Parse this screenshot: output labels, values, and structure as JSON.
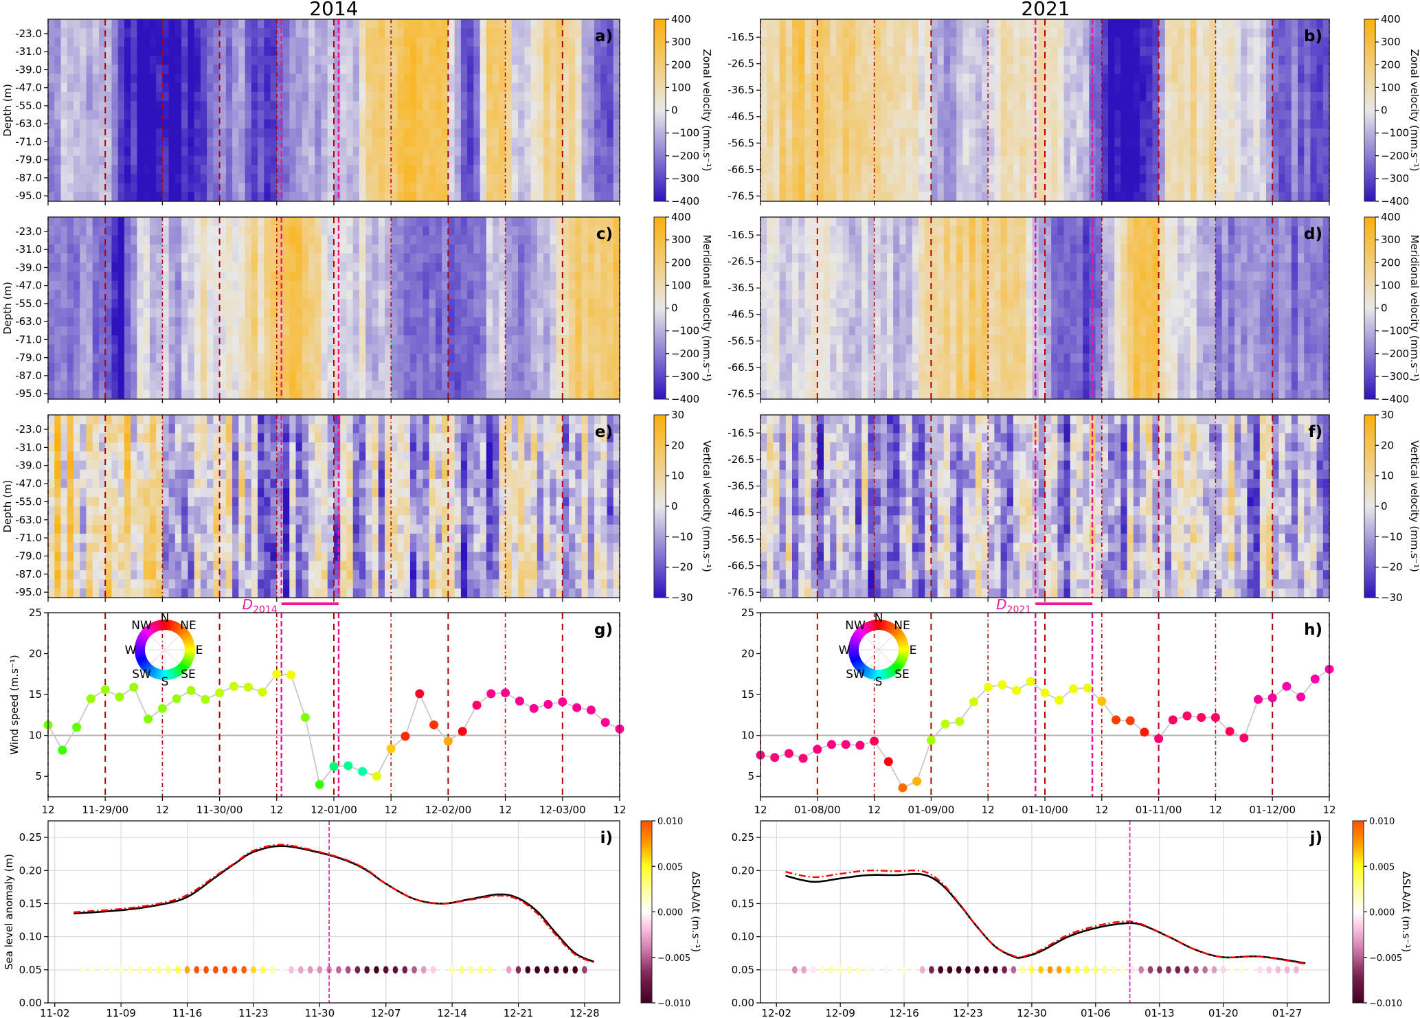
{
  "titles": {
    "left": "2014",
    "right": "2021"
  },
  "colors": {
    "velocity_low": "#2d12be",
    "velocity_mid": "#e8e8e8",
    "velocity_high": "#fcb00a",
    "day_line": "#b00000",
    "event": "#f0149c",
    "sla_line": "#000000",
    "sla_line_alt": "#ff0000",
    "wind_line": "#c8c8c8",
    "reference_line": "#b0b0b0"
  },
  "events": {
    "2014": {
      "label": "D",
      "subscript": "2014",
      "start": "11-30 13:00",
      "end": "12-01 01:00"
    },
    "2021": {
      "label": "D",
      "subscript": "2021",
      "start": "01-09 22:00",
      "end": "01-10 10:00"
    }
  },
  "chart_data": [
    {
      "panel_label": "a)",
      "type": "heatmap",
      "ylabel": "Depth (m)",
      "time_range": [
        "11-28 12:00",
        "12-03 12:00"
      ],
      "ylim": [
        -97.4,
        -16.6
      ],
      "yticks": [
        "-23.0",
        "-31.0",
        "-39.0",
        "-47.0",
        "-55.0",
        "-63.0",
        "-71.0",
        "-79.0",
        "-87.0",
        "-95.0"
      ],
      "value_range": [
        -400,
        400
      ],
      "colorbar": {
        "label": "Zonal velocity (mm.s⁻¹)",
        "ticks": [
          "400",
          "300",
          "200",
          "100",
          "0",
          "−100",
          "−200",
          "−300",
          "−400"
        ]
      },
      "column_profile": [
        -120,
        -110,
        -130,
        -100,
        -60,
        -300,
        -400,
        -400,
        -400,
        -380,
        -330,
        -230,
        -200,
        -180,
        -260,
        -370,
        -200,
        -150,
        -130,
        -110,
        -60,
        -20,
        150,
        220,
        240,
        260,
        280,
        320,
        -200,
        -300,
        220,
        180,
        -40,
        -30,
        160,
        170,
        80,
        -180,
        -220,
        -180
      ]
    },
    {
      "panel_label": "b)",
      "type": "heatmap",
      "ylabel": "",
      "time_range": [
        "01-07 12:00",
        "01-12 12:00"
      ],
      "ylim": [
        -78.5,
        -9.7
      ],
      "yticks": [
        "-16.5",
        "-26.5",
        "-36.5",
        "-46.5",
        "-56.5",
        "-66.5",
        "-76.5"
      ],
      "value_range": [
        -400,
        400
      ],
      "colorbar": {
        "label": "Zonal velocity (mm.s⁻¹)",
        "ticks": [
          "400",
          "300",
          "200",
          "100",
          "0",
          "−100",
          "−200",
          "−300",
          "−400"
        ]
      },
      "column_profile": [
        150,
        180,
        200,
        200,
        170,
        160,
        150,
        150,
        130,
        100,
        60,
        40,
        -130,
        -150,
        -120,
        -100,
        40,
        80,
        100,
        90,
        20,
        -20,
        -60,
        -200,
        -400,
        -400,
        -380,
        -250,
        100,
        120,
        110,
        60,
        20,
        10,
        -20,
        -180,
        -200,
        -220,
        -240,
        -250
      ]
    },
    {
      "panel_label": "c)",
      "type": "heatmap",
      "ylabel": "Depth (m)",
      "time_range": [
        "11-28 12:00",
        "12-03 12:00"
      ],
      "ylim": [
        -97.4,
        -16.6
      ],
      "yticks": [
        "-23.0",
        "-31.0",
        "-39.0",
        "-47.0",
        "-55.0",
        "-63.0",
        "-71.0",
        "-79.0",
        "-87.0",
        "-95.0"
      ],
      "value_range": [
        -400,
        400
      ],
      "colorbar": {
        "label": "Meridional velocity (mm.s⁻¹)",
        "ticks": [
          "400",
          "300",
          "200",
          "100",
          "0",
          "−100",
          "−200",
          "−300",
          "−400"
        ]
      },
      "column_profile": [
        -150,
        -180,
        -170,
        -200,
        -250,
        -400,
        -80,
        -40,
        -50,
        -160,
        20,
        60,
        40,
        80,
        120,
        150,
        280,
        320,
        120,
        60,
        -10,
        -20,
        -40,
        -30,
        -180,
        -240,
        -220,
        -260,
        -200,
        -300,
        -50,
        -20,
        -160,
        -150,
        -130,
        60,
        200,
        230,
        240,
        200
      ]
    },
    {
      "panel_label": "d)",
      "type": "heatmap",
      "ylabel": "",
      "time_range": [
        "01-07 12:00",
        "01-12 12:00"
      ],
      "ylim": [
        -78.5,
        -9.7
      ],
      "yticks": [
        "-16.5",
        "-26.5",
        "-36.5",
        "-46.5",
        "-56.5",
        "-66.5",
        "-76.5"
      ],
      "value_range": [
        -400,
        400
      ],
      "colorbar": {
        "label": "Meridional velocity (mm.s⁻¹)",
        "ticks": [
          "400",
          "300",
          "200",
          "100",
          "0",
          "−100",
          "−200",
          "−300",
          "−400"
        ]
      },
      "column_profile": [
        -40,
        -30,
        -50,
        -20,
        -40,
        -10,
        -30,
        -40,
        -20,
        -60,
        -100,
        60,
        120,
        160,
        180,
        200,
        180,
        150,
        120,
        -100,
        -220,
        -200,
        -230,
        -260,
        -50,
        200,
        250,
        220,
        60,
        -50,
        -80,
        -160,
        -180,
        -170,
        -200,
        -190,
        -220,
        -210,
        -180,
        -170
      ]
    },
    {
      "panel_label": "e)",
      "type": "heatmap",
      "ylabel": "Depth (m)",
      "time_range": [
        "11-28 12:00",
        "12-03 12:00"
      ],
      "ylim": [
        -97.4,
        -16.6
      ],
      "yticks": [
        "-23.0",
        "-31.0",
        "-39.0",
        "-47.0",
        "-55.0",
        "-63.0",
        "-71.0",
        "-79.0",
        "-87.0",
        "-95.0"
      ],
      "value_range": [
        -30,
        30
      ],
      "colorbar": {
        "label": "Vertical velocity (mm.s⁻¹)",
        "ticks": [
          "30",
          "20",
          "10",
          "0",
          "−10",
          "−20",
          "−30"
        ]
      },
      "column_profile": [
        10,
        12,
        8,
        10,
        6,
        5,
        8,
        4,
        2,
        0,
        -2,
        3,
        5,
        -5,
        -8,
        -10,
        -12,
        -10,
        -6,
        -4,
        -2,
        -8,
        -6,
        -4,
        -6,
        -10,
        -5,
        -3,
        -8,
        -6,
        -10,
        -4,
        -2,
        -5,
        -8,
        -6,
        -4,
        -3,
        -6,
        -5
      ]
    },
    {
      "panel_label": "f)",
      "type": "heatmap",
      "ylabel": "",
      "time_range": [
        "01-07 12:00",
        "01-12 12:00"
      ],
      "ylim": [
        -78.5,
        -9.7
      ],
      "yticks": [
        "-16.5",
        "-26.5",
        "-36.5",
        "-46.5",
        "-56.5",
        "-66.5",
        "-76.5"
      ],
      "value_range": [
        -30,
        30
      ],
      "colorbar": {
        "label": "Vertical velocity (mm.s⁻¹)",
        "ticks": [
          "30",
          "20",
          "10",
          "0",
          "−10",
          "−20",
          "−30"
        ]
      },
      "column_profile": [
        -8,
        -10,
        -6,
        -4,
        -8,
        -10,
        -6,
        -5,
        -7,
        -9,
        -5,
        -4,
        -6,
        -8,
        -10,
        -6,
        -4,
        -7,
        -9,
        -5,
        -6,
        -8,
        -5,
        -3,
        -6,
        -9,
        -10,
        -5,
        -4,
        -7,
        -8,
        -6,
        -3,
        -5,
        -9,
        -8,
        -6,
        -4,
        -7,
        -8
      ]
    },
    {
      "panel_label": "g)",
      "type": "scatter-line",
      "ylabel": "Wind speed (m.s⁻¹)",
      "time_range": [
        "11-28 12:00",
        "12-03 12:00"
      ],
      "ylim": [
        2.5,
        25
      ],
      "yticks": [
        "5",
        "10",
        "15",
        "20",
        "25"
      ],
      "reference_line": 10,
      "xticks": [
        "12",
        "11-29/00",
        "12",
        "11-30/00",
        "12",
        "12-01/00",
        "12",
        "12-02/00",
        "12",
        "12-03/00",
        "12"
      ],
      "x_start": "11-28 12:00",
      "step_hours": 3,
      "speed": [
        11.3,
        8.2,
        11.0,
        14.5,
        15.6,
        14.7,
        15.9,
        12.0,
        13.3,
        14.5,
        15.5,
        14.4,
        15.2,
        16.0,
        15.9,
        15.3,
        17.5,
        17.4,
        12.2,
        4.0,
        6.2,
        6.3,
        5.6,
        5.0,
        8.4,
        9.9,
        15.1,
        11.3,
        9.3,
        10.5,
        13.7,
        15.1,
        15.2,
        14.2,
        13.3,
        13.8,
        14.1,
        13.4,
        13.1,
        11.6,
        10.8
      ],
      "direction_deg": [
        115,
        125,
        118,
        108,
        108,
        108,
        108,
        112,
        110,
        108,
        106,
        105,
        102,
        100,
        100,
        98,
        92,
        92,
        112,
        125,
        155,
        160,
        165,
        95,
        72,
        15,
        352,
        18,
        60,
        356,
        340,
        336,
        335,
        335,
        334,
        334,
        334,
        334,
        334,
        334,
        334
      ],
      "compass_labels": [
        "N",
        "NE",
        "E",
        "SE",
        "S",
        "SW",
        "W",
        "NW"
      ]
    },
    {
      "panel_label": "h)",
      "type": "scatter-line",
      "ylabel": "",
      "time_range": [
        "01-07 12:00",
        "01-12 12:00"
      ],
      "ylim": [
        2.5,
        25
      ],
      "yticks": [
        "5",
        "10",
        "15",
        "20",
        "25"
      ],
      "reference_line": 10,
      "xticks": [
        "12",
        "01-08/00",
        "12",
        "01-09/00",
        "12",
        "01-10/00",
        "12",
        "01-11/00",
        "12",
        "01-12/00",
        "12"
      ],
      "x_start": "01-07 12:00",
      "step_hours": 3,
      "speed": [
        7.6,
        7.3,
        7.8,
        7.2,
        8.3,
        8.9,
        8.9,
        8.8,
        9.3,
        6.8,
        3.6,
        4.4,
        9.4,
        11.4,
        11.7,
        14.1,
        15.9,
        16.2,
        15.5,
        16.6,
        15.2,
        14.3,
        15.7,
        15.8,
        14.2,
        11.9,
        11.8,
        10.4,
        9.6,
        11.9,
        12.4,
        12.2,
        12.2,
        10.5,
        9.7,
        14.4,
        14.6,
        16.0,
        14.7,
        16.9,
        18.1
      ],
      "direction_deg": [
        338,
        338,
        338,
        338,
        338,
        338,
        338,
        338,
        345,
        358,
        38,
        63,
        105,
        102,
        102,
        98,
        93,
        93,
        93,
        93,
        93,
        93,
        93,
        93,
        68,
        22,
        22,
        8,
        340,
        342,
        342,
        342,
        342,
        345,
        340,
        332,
        332,
        330,
        330,
        330,
        330
      ],
      "compass_labels": [
        "N",
        "NE",
        "E",
        "SE",
        "S",
        "SW",
        "W",
        "NW"
      ]
    },
    {
      "panel_label": "i)",
      "type": "line",
      "ylabel": "Sea level anomaly (m)",
      "xlim": [
        "11-01 07:00",
        "12-31 17:00"
      ],
      "ylim": [
        0,
        0.275
      ],
      "xticks": [
        "11-02",
        "11-09",
        "11-16",
        "11-23",
        "11-30",
        "12-07",
        "12-14",
        "12-21",
        "12-28"
      ],
      "yticks": [
        "0.00",
        "0.05",
        "0.10",
        "0.15",
        "0.20",
        "0.25"
      ],
      "grid": true,
      "series": [
        {
          "style": "solid",
          "x": [
            "11-04",
            "11-09",
            "11-13",
            "11-16",
            "11-19",
            "11-21",
            "11-23",
            "11-26",
            "11-30",
            "12-03",
            "12-05",
            "12-07",
            "12-10",
            "12-13",
            "12-16",
            "12-19",
            "12-21",
            "12-23",
            "12-25",
            "12-27",
            "12-29"
          ],
          "y": [
            0.135,
            0.14,
            0.148,
            0.16,
            0.19,
            0.21,
            0.228,
            0.237,
            0.227,
            0.214,
            0.2,
            0.18,
            0.157,
            0.15,
            0.157,
            0.164,
            0.158,
            0.138,
            0.105,
            0.075,
            0.062
          ]
        },
        {
          "style": "dash-dot",
          "x": [
            "11-04",
            "11-09",
            "11-13",
            "11-16",
            "11-19",
            "11-21",
            "11-23",
            "11-26",
            "11-30",
            "12-03",
            "12-05",
            "12-07",
            "12-10",
            "12-13",
            "12-16",
            "12-19",
            "12-21",
            "12-23",
            "12-25",
            "12-27",
            "12-29"
          ],
          "y": [
            0.137,
            0.142,
            0.15,
            0.163,
            0.192,
            0.211,
            0.23,
            0.239,
            0.228,
            0.215,
            0.201,
            0.18,
            0.157,
            0.15,
            0.156,
            0.162,
            0.156,
            0.135,
            0.102,
            0.073,
            0.061
          ]
        }
      ],
      "rate_dots": {
        "y": 0.05,
        "start": "11-05",
        "end": "12-28"
      },
      "event_line": "12-01 00:00",
      "colorbar": {
        "label": "ΔSLA/Δt (m.s⁻¹)",
        "ticks": [
          "0.010",
          "0.005",
          "0.000",
          "−0.005",
          "−0.010"
        ],
        "range": [
          -0.01,
          0.01
        ]
      }
    },
    {
      "panel_label": "j)",
      "type": "line",
      "ylabel": "",
      "xlim": [
        "11-30 06:00",
        "01-31 15:00"
      ],
      "ylim": [
        0,
        0.275
      ],
      "xticks": [
        "12-02",
        "12-09",
        "12-16",
        "12-23",
        "12-30",
        "01-06",
        "01-13",
        "01-20",
        "01-27"
      ],
      "yticks": [
        "0.00",
        "0.05",
        "0.10",
        "0.15",
        "0.20",
        "0.25"
      ],
      "grid": true,
      "series": [
        {
          "style": "solid",
          "x": [
            "12-03",
            "12-06",
            "12-09",
            "12-12",
            "12-15",
            "12-18",
            "12-20",
            "12-22",
            "12-24",
            "12-26",
            "12-28",
            "12-29",
            "12-31",
            "01-03",
            "01-06",
            "01-09",
            "01-11",
            "01-14",
            "01-17",
            "01-20",
            "01-24",
            "01-29"
          ],
          "y": [
            0.192,
            0.183,
            0.188,
            0.193,
            0.193,
            0.194,
            0.18,
            0.15,
            0.115,
            0.085,
            0.07,
            0.069,
            0.078,
            0.1,
            0.113,
            0.12,
            0.118,
            0.1,
            0.08,
            0.069,
            0.07,
            0.06
          ]
        },
        {
          "style": "dash-dot",
          "x": [
            "12-03",
            "12-06",
            "12-09",
            "12-12",
            "12-15",
            "12-18",
            "12-20",
            "12-22",
            "12-24",
            "12-26",
            "12-28",
            "12-29",
            "12-31",
            "01-03",
            "01-06",
            "01-09",
            "01-11",
            "01-14",
            "01-17",
            "01-20",
            "01-24",
            "01-29"
          ],
          "y": [
            0.198,
            0.19,
            0.195,
            0.2,
            0.199,
            0.199,
            0.183,
            0.151,
            0.115,
            0.085,
            0.071,
            0.07,
            0.08,
            0.103,
            0.116,
            0.123,
            0.119,
            0.1,
            0.08,
            0.069,
            0.07,
            0.059
          ]
        }
      ],
      "rate_dots": {
        "y": 0.05,
        "start": "12-04",
        "end": "01-28"
      },
      "event_line": "01-09 18:00",
      "colorbar": {
        "label": "ΔSLA/Δt (m.s⁻¹)",
        "ticks": [
          "0.010",
          "0.005",
          "0.000",
          "−0.005",
          "−0.010"
        ],
        "range": [
          -0.01,
          0.01
        ]
      }
    }
  ]
}
